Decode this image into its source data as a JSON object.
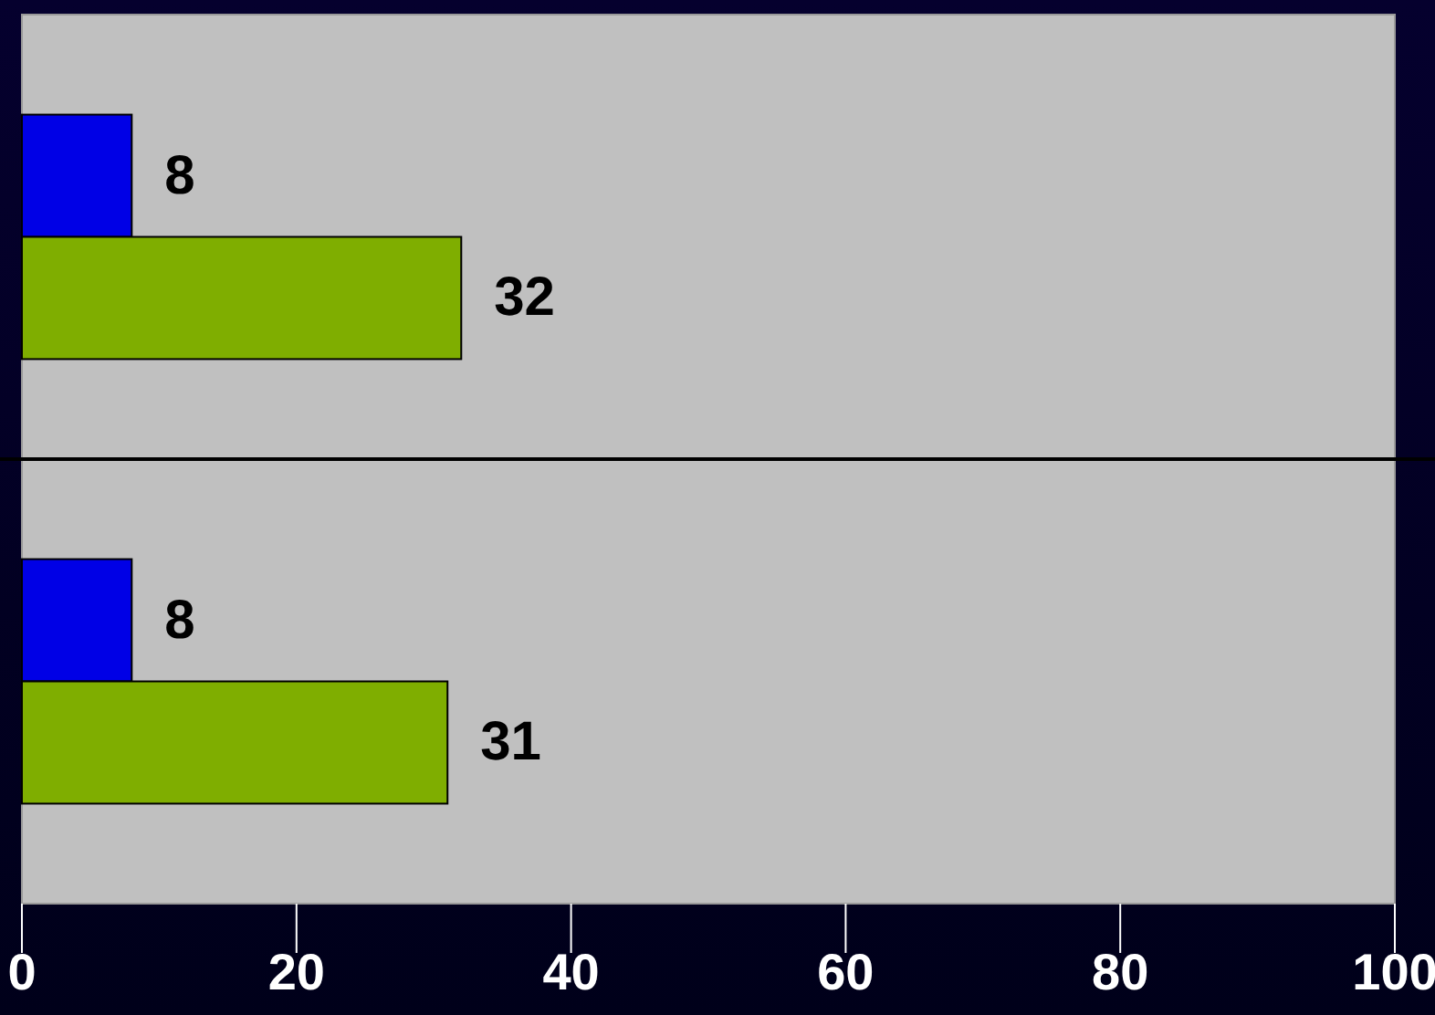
{
  "chart_data": {
    "type": "bar",
    "orientation": "horizontal",
    "categories": [
      null,
      null
    ],
    "series": [
      {
        "color": "#0000e6",
        "values": [
          8,
          8
        ]
      },
      {
        "color": "#7fae00",
        "values": [
          32,
          31
        ]
      }
    ],
    "xlim": [
      0,
      100
    ],
    "xticks": [
      0,
      20,
      40,
      60,
      80,
      100
    ],
    "grid": "y",
    "data_labels": true
  }
}
